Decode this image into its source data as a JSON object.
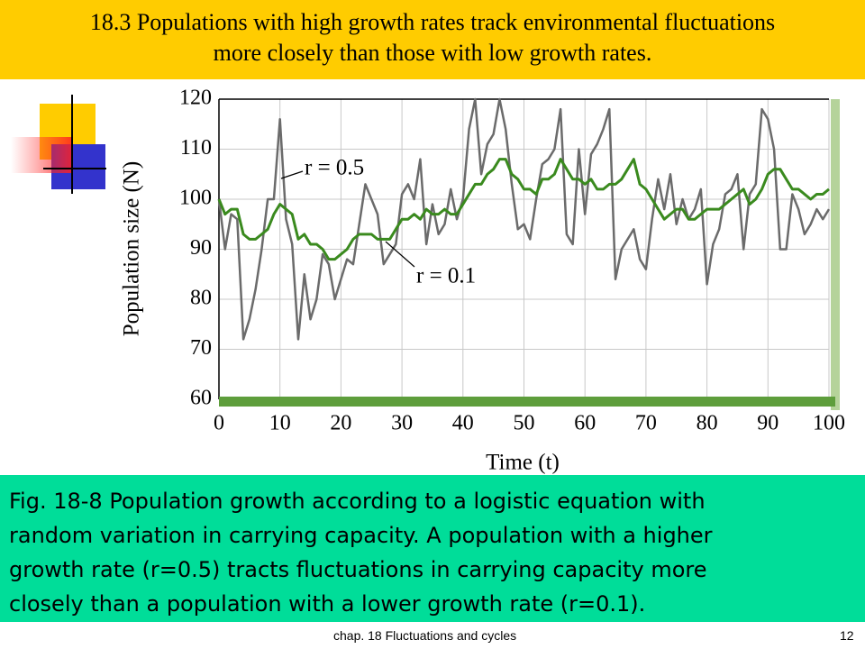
{
  "header": {
    "lines": [
      "18.3 Populations with high growth rates track environmental  fluctuations",
      "more closely than those with low growth rates."
    ]
  },
  "caption": {
    "lines": [
      "Fig. 18-8 Population growth according to a logistic equation with",
      "random variation in carrying capacity. A population with a higher",
      "growth rate (r=0.5) tracts fluctuations in carrying capacity more",
      "closely than a population with a lower growth rate (r=0.1)."
    ]
  },
  "footer": {
    "text": "chap. 18 Fluctuations and cycles",
    "page": "12"
  },
  "chart_data": {
    "type": "line",
    "x_label": "Time (t)",
    "y_label": "Population size (N)",
    "x": [
      0,
      1,
      2,
      3,
      4,
      5,
      6,
      7,
      8,
      9,
      10,
      11,
      12,
      13,
      14,
      15,
      16,
      17,
      18,
      19,
      20,
      21,
      22,
      23,
      24,
      25,
      26,
      27,
      28,
      29,
      30,
      31,
      32,
      33,
      34,
      35,
      36,
      37,
      38,
      39,
      40,
      41,
      42,
      43,
      44,
      45,
      46,
      47,
      48,
      49,
      50,
      51,
      52,
      53,
      54,
      55,
      56,
      57,
      58,
      59,
      60,
      61,
      62,
      63,
      64,
      65,
      66,
      67,
      68,
      69,
      70,
      71,
      72,
      73,
      74,
      75,
      76,
      77,
      78,
      79,
      80,
      81,
      82,
      83,
      84,
      85,
      86,
      87,
      88,
      89,
      90,
      91,
      92,
      93,
      94,
      95,
      96,
      97,
      98,
      99,
      100
    ],
    "series": [
      {
        "name": "r = 0.5",
        "color": "#6b6b6b",
        "values": [
          100,
          90,
          97,
          96,
          72,
          76,
          82,
          90,
          100,
          100,
          116,
          96,
          91,
          72,
          85,
          76,
          80,
          89,
          87,
          80,
          84,
          88,
          87,
          95,
          103,
          100,
          97,
          87,
          89,
          91,
          101,
          103,
          100,
          108,
          91,
          99,
          93,
          95,
          102,
          96,
          100,
          114,
          120,
          105,
          111,
          113,
          120,
          114,
          103,
          94,
          95,
          92,
          100,
          107,
          108,
          110,
          118,
          93,
          91,
          110,
          97,
          109,
          111,
          114,
          118,
          84,
          90,
          92,
          94,
          88,
          86,
          96,
          104,
          98,
          105,
          95,
          100,
          96,
          98,
          102,
          83,
          91,
          94,
          101,
          102,
          105,
          90,
          101,
          103,
          118,
          116,
          110,
          90,
          90,
          101,
          98,
          93,
          95,
          98,
          96,
          98
        ]
      },
      {
        "name": "r = 0.1",
        "color": "#3a8a1e",
        "values": [
          100,
          97,
          98,
          98,
          93,
          92,
          92,
          93,
          94,
          97,
          99,
          98,
          97,
          92,
          93,
          91,
          91,
          90,
          88,
          88,
          89,
          90,
          92,
          93,
          93,
          93,
          92,
          92,
          92,
          94,
          96,
          96,
          97,
          96,
          98,
          97,
          97,
          98,
          97,
          97,
          99,
          101,
          103,
          103,
          105,
          106,
          108,
          108,
          105,
          104,
          102,
          102,
          101,
          104,
          104,
          105,
          108,
          106,
          104,
          104,
          103,
          104,
          102,
          102,
          103,
          103,
          104,
          106,
          108,
          103,
          102,
          100,
          98,
          96,
          97,
          98,
          98,
          96,
          96,
          97,
          98,
          98,
          98,
          99,
          100,
          101,
          102,
          99,
          100,
          102,
          105,
          106,
          106,
          104,
          102,
          102,
          101,
          100,
          101,
          101,
          102
        ]
      }
    ],
    "xlim": [
      0,
      100
    ],
    "xticks": [
      0,
      10,
      20,
      30,
      40,
      50,
      60,
      70,
      80,
      90,
      100
    ],
    "ylim": [
      60,
      120
    ],
    "yticks": [
      60,
      70,
      80,
      90,
      100,
      110,
      120
    ],
    "grid": true
  }
}
